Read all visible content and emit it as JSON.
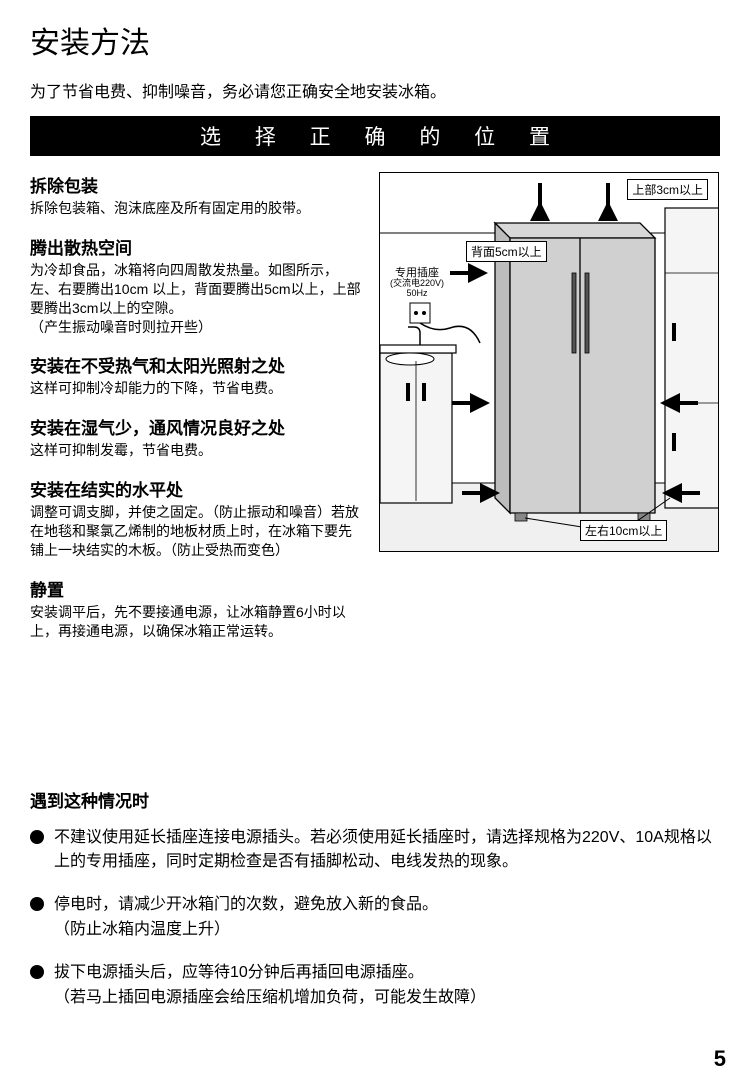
{
  "title": "安装方法",
  "intro": "为了节省电费、抑制噪音，务必请您正确安全地安装冰箱。",
  "bar": "选 择 正 确 的 位 置",
  "sections": [
    {
      "h": "拆除包装",
      "p": "拆除包装箱、泡沫底座及所有固定用的胶带。"
    },
    {
      "h": "腾出散热空间",
      "p": "为冷却食品，冰箱将向四周散发热量。如图所示，左、右要腾出10cm 以上，背面要腾出5cm以上，上部要腾出3cm以上的空隙。\n（产生振动噪音时则拉开些）"
    },
    {
      "h": "安装在不受热气和太阳光照射之处",
      "p": "这样可抑制冷却能力的下降，节省电费。"
    },
    {
      "h": "安装在湿气少，通风情况良好之处",
      "p": "这样可抑制发霉，节省电费。"
    },
    {
      "h": "安装在结实的水平处",
      "p": "调整可调支脚，并使之固定。（防止振动和噪音）若放在地毯和聚氯乙烯制的地板材质上时，在冰箱下要先铺上一块结实的木板。（防止受热而变色）"
    },
    {
      "h": "静置",
      "p": "安装调平后，先不要接通电源，让冰箱静置6小时以上，再接通电源，以确保冰箱正常运转。"
    }
  ],
  "diagram": {
    "top_label": "上部3cm以上",
    "back_label": "背面5cm以上",
    "side_label": "左右10cm以上",
    "outlet_label1": "专用插座",
    "outlet_label2": "(交流电220V)",
    "outlet_label3": "50Hz",
    "colors": {
      "fridge_fill": "#d0d0d0",
      "cabinet_fill": "#f5f5f5",
      "counter_fill": "#e8e8e8",
      "line": "#000000"
    }
  },
  "notes_h": "遇到这种情况时",
  "notes": [
    "不建议使用延长插座连接电源插头。若必须使用延长插座时，请选择规格为220V、10A规格以上的专用插座，同时定期检查是否有插脚松动、电线发热的现象。",
    "停电时，请减少开冰箱门的次数，避免放入新的食品。\n（防止冰箱内温度上升）",
    "拔下电源插头后，应等待10分钟后再插回电源插座。\n（若马上插回电源插座会给压缩机增加负荷，可能发生故障）"
  ],
  "page_num": "5"
}
